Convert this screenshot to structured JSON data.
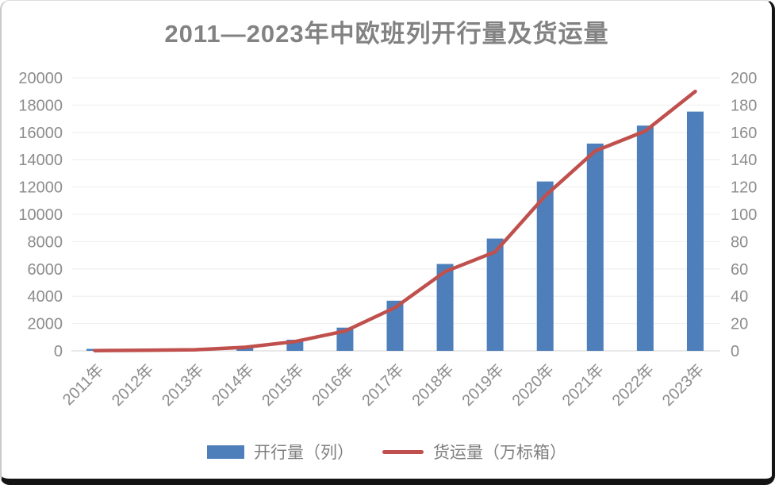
{
  "frame": {
    "background": "#ffffff",
    "border_color": "#141414"
  },
  "chart_data": {
    "type": "bar+line",
    "title": "2011—2023年中欧班列开行量及货运量",
    "categories": [
      "2011年",
      "2012年",
      "2013年",
      "2014年",
      "2015年",
      "2016年",
      "2017年",
      "2018年",
      "2019年",
      "2020年",
      "2021年",
      "2022年",
      "2023年"
    ],
    "series": [
      {
        "name": "开行量（列）",
        "type": "bar",
        "axis": "left",
        "color": "#4e7fbb",
        "values": [
          17,
          42,
          80,
          308,
          815,
          1702,
          3673,
          6363,
          8225,
          12406,
          15183,
          16500,
          17523
        ]
      },
      {
        "name": "货运量（万标箱）",
        "type": "line",
        "axis": "right",
        "color": "#c0504d",
        "values": [
          0.15,
          0.4,
          0.8,
          2.6,
          6.8,
          14.5,
          31.7,
          58,
          72.5,
          113.5,
          146.4,
          161,
          190
        ]
      }
    ],
    "left_axis": {
      "min": 0,
      "max": 20000,
      "step": 2000,
      "ticks": [
        "0",
        "2000",
        "4000",
        "6000",
        "8000",
        "10000",
        "12000",
        "14000",
        "16000",
        "18000",
        "20000"
      ]
    },
    "right_axis": {
      "min": 0,
      "max": 200,
      "step": 20,
      "ticks": [
        "0",
        "20",
        "40",
        "60",
        "80",
        "100",
        "120",
        "140",
        "160",
        "180",
        "200"
      ]
    },
    "grid": true,
    "grid_color": "#f1f1f1",
    "baseline_color": "#dcdcdc",
    "tick_color": "#8c8c8c",
    "legend_position": "bottom"
  }
}
